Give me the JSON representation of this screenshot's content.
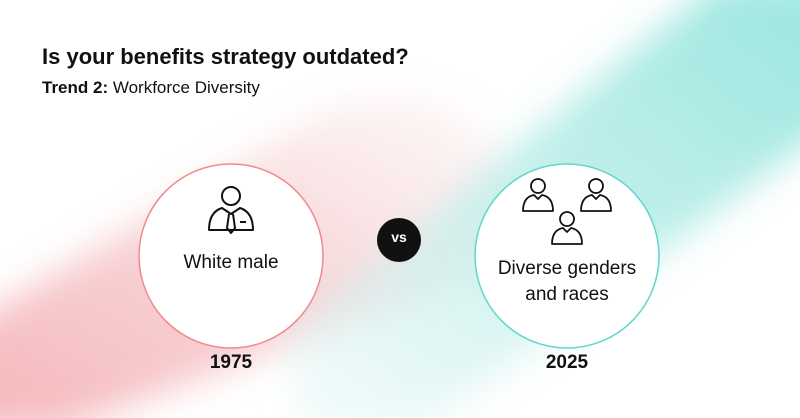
{
  "title": "Is your benefits strategy outdated?",
  "subtitle": {
    "label": "Trend 2:",
    "text": "Workforce Diversity"
  },
  "past": {
    "label": "White male",
    "year": "1975"
  },
  "vs": "vs",
  "future": {
    "label": "Diverse genders and races",
    "year": "2025"
  }
}
